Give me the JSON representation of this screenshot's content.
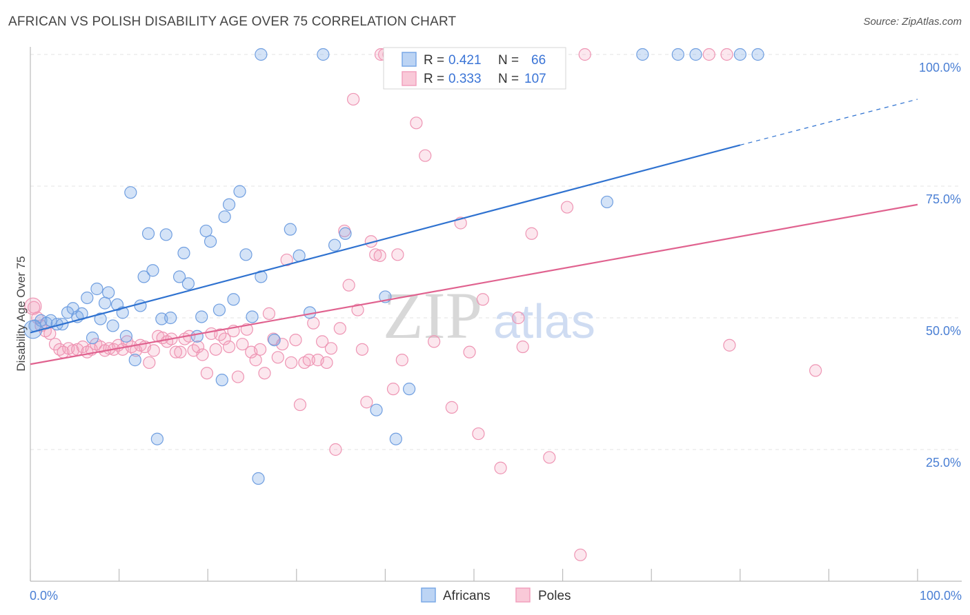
{
  "title": "AFRICAN VS POLISH DISABILITY AGE OVER 75 CORRELATION CHART",
  "source": "Source: ZipAtlas.com",
  "watermark": {
    "zip": "ZIP",
    "atlas": "atlas"
  },
  "colors": {
    "africans": "#7aa8e6",
    "africans_line": "#2f72d0",
    "poles": "#f2a0bd",
    "poles_line": "#e0628f",
    "tick_text": "#4a7fd4",
    "grid": "#e3e3e3"
  },
  "legend": {
    "rows": [
      {
        "r_label": "R =",
        "r_value": "0.421",
        "n_label": "N =",
        "n_value": "66"
      },
      {
        "r_label": "R =",
        "r_value": "0.333",
        "n_label": "N =",
        "n_value": "107"
      }
    ]
  },
  "chart_data": {
    "type": "scatter",
    "xlabel": "",
    "ylabel": "Disability Age Over 75",
    "xlim": [
      0,
      100
    ],
    "ylim": [
      0,
      100
    ],
    "x_tick_labels": [
      "0.0%",
      "100.0%"
    ],
    "y_tick_labels": [
      "25.0%",
      "50.0%",
      "75.0%",
      "100.0%"
    ],
    "y_ticks": [
      25,
      50,
      75,
      100
    ],
    "grid": true,
    "legend_position": "top-center",
    "series": [
      {
        "name": "Africans",
        "color": "#7aa8e6",
        "trend": {
          "x0": 0,
          "y0": 47.2,
          "x1": 80,
          "y1": 82.8,
          "dash_to_x": 100,
          "dash_to_y": 91.5
        },
        "points": [
          [
            0.5,
            48.5
          ],
          [
            1.2,
            49.5
          ],
          [
            1.8,
            49.0
          ],
          [
            2.3,
            49.5
          ],
          [
            3.0,
            48.8
          ],
          [
            3.6,
            48.8
          ],
          [
            4.2,
            51.0
          ],
          [
            4.8,
            51.8
          ],
          [
            5.3,
            50.2
          ],
          [
            5.8,
            50.8
          ],
          [
            6.4,
            53.8
          ],
          [
            7.0,
            46.2
          ],
          [
            7.5,
            55.5
          ],
          [
            7.9,
            49.8
          ],
          [
            8.4,
            52.8
          ],
          [
            8.8,
            54.8
          ],
          [
            9.3,
            48.5
          ],
          [
            9.8,
            52.5
          ],
          [
            10.4,
            51.0
          ],
          [
            10.8,
            46.5
          ],
          [
            11.3,
            73.8
          ],
          [
            11.8,
            42.0
          ],
          [
            12.4,
            52.3
          ],
          [
            12.8,
            57.8
          ],
          [
            13.3,
            66.0
          ],
          [
            13.8,
            59.0
          ],
          [
            14.3,
            27.0
          ],
          [
            14.8,
            49.8
          ],
          [
            15.3,
            65.8
          ],
          [
            15.8,
            50.0
          ],
          [
            16.8,
            57.8
          ],
          [
            17.3,
            62.3
          ],
          [
            17.8,
            56.5
          ],
          [
            18.8,
            46.5
          ],
          [
            19.3,
            50.2
          ],
          [
            19.8,
            66.5
          ],
          [
            20.3,
            64.5
          ],
          [
            21.3,
            51.5
          ],
          [
            21.6,
            38.2
          ],
          [
            21.9,
            69.2
          ],
          [
            22.4,
            71.5
          ],
          [
            22.9,
            53.5
          ],
          [
            23.6,
            74.0
          ],
          [
            24.3,
            62.0
          ],
          [
            25.0,
            50.2
          ],
          [
            26.0,
            57.8
          ],
          [
            26.0,
            100.0
          ],
          [
            27.5,
            45.8
          ],
          [
            29.3,
            66.8
          ],
          [
            30.3,
            61.8
          ],
          [
            31.5,
            51.0
          ],
          [
            33.0,
            100.0
          ],
          [
            34.3,
            63.8
          ],
          [
            35.5,
            66.0
          ],
          [
            39.0,
            32.5
          ],
          [
            40.0,
            54.0
          ],
          [
            41.2,
            27.0
          ],
          [
            42.7,
            36.5
          ],
          [
            57.5,
            100.0
          ],
          [
            65.0,
            72.0
          ],
          [
            69.0,
            100.0
          ],
          [
            73.0,
            100.0
          ],
          [
            75.0,
            100.0
          ],
          [
            80.0,
            100.0
          ],
          [
            82.0,
            100.0
          ],
          [
            25.7,
            19.5
          ]
        ]
      },
      {
        "name": "Poles",
        "color": "#f2a0bd",
        "trend": {
          "x0": 0,
          "y0": 41.2,
          "x1": 100,
          "y1": 71.5
        },
        "points": [
          [
            0.4,
            52.0
          ],
          [
            0.8,
            50.0
          ],
          [
            1.2,
            48.5
          ],
          [
            1.7,
            47.5
          ],
          [
            2.2,
            47.0
          ],
          [
            2.8,
            45.0
          ],
          [
            3.3,
            44.0
          ],
          [
            3.7,
            43.5
          ],
          [
            4.3,
            44.2
          ],
          [
            4.8,
            43.8
          ],
          [
            5.3,
            44.0
          ],
          [
            5.9,
            44.5
          ],
          [
            6.4,
            43.5
          ],
          [
            6.9,
            44.0
          ],
          [
            7.4,
            45.0
          ],
          [
            7.9,
            44.5
          ],
          [
            8.4,
            43.8
          ],
          [
            8.9,
            44.2
          ],
          [
            9.4,
            44.0
          ],
          [
            9.9,
            44.8
          ],
          [
            10.4,
            44.0
          ],
          [
            10.9,
            45.5
          ],
          [
            11.4,
            44.5
          ],
          [
            11.9,
            43.8
          ],
          [
            12.4,
            44.8
          ],
          [
            12.9,
            44.5
          ],
          [
            13.4,
            41.5
          ],
          [
            13.9,
            43.8
          ],
          [
            14.4,
            46.5
          ],
          [
            14.9,
            46.2
          ],
          [
            15.4,
            45.5
          ],
          [
            15.9,
            46.0
          ],
          [
            16.4,
            43.5
          ],
          [
            16.9,
            43.5
          ],
          [
            17.4,
            46.0
          ],
          [
            17.9,
            46.5
          ],
          [
            18.4,
            43.8
          ],
          [
            18.9,
            44.5
          ],
          [
            19.4,
            43.0
          ],
          [
            19.9,
            39.5
          ],
          [
            20.4,
            47.0
          ],
          [
            20.9,
            44.0
          ],
          [
            21.4,
            46.8
          ],
          [
            21.9,
            46.0
          ],
          [
            22.4,
            44.5
          ],
          [
            22.9,
            47.5
          ],
          [
            23.4,
            38.8
          ],
          [
            23.9,
            45.0
          ],
          [
            24.4,
            47.8
          ],
          [
            24.9,
            43.5
          ],
          [
            25.4,
            42.0
          ],
          [
            25.9,
            44.0
          ],
          [
            26.4,
            39.5
          ],
          [
            26.9,
            50.8
          ],
          [
            27.4,
            46.0
          ],
          [
            27.9,
            42.5
          ],
          [
            28.4,
            45.0
          ],
          [
            28.9,
            61.0
          ],
          [
            29.4,
            41.5
          ],
          [
            29.9,
            45.8
          ],
          [
            30.4,
            33.5
          ],
          [
            30.9,
            41.5
          ],
          [
            31.4,
            42.0
          ],
          [
            31.9,
            49.0
          ],
          [
            32.4,
            42.0
          ],
          [
            32.9,
            45.5
          ],
          [
            33.4,
            41.5
          ],
          [
            33.9,
            44.2
          ],
          [
            34.4,
            25.0
          ],
          [
            34.9,
            48.0
          ],
          [
            35.4,
            66.5
          ],
          [
            35.9,
            56.2
          ],
          [
            36.4,
            91.5
          ],
          [
            36.9,
            51.5
          ],
          [
            37.4,
            44.0
          ],
          [
            37.9,
            34.0
          ],
          [
            38.4,
            64.5
          ],
          [
            38.9,
            62.0
          ],
          [
            39.4,
            61.8
          ],
          [
            39.9,
            100.0
          ],
          [
            40.4,
            100.0
          ],
          [
            40.9,
            36.5
          ],
          [
            41.4,
            62.0
          ],
          [
            41.9,
            42.0
          ],
          [
            42.4,
            100.0
          ],
          [
            43.5,
            87.0
          ],
          [
            44.5,
            80.8
          ],
          [
            45.5,
            45.5
          ],
          [
            46.5,
            100.0
          ],
          [
            47.5,
            33.0
          ],
          [
            48.5,
            68.0
          ],
          [
            49.5,
            43.5
          ],
          [
            50.5,
            28.0
          ],
          [
            51.0,
            53.5
          ],
          [
            53.0,
            21.5
          ],
          [
            55.0,
            50.0
          ],
          [
            55.5,
            44.5
          ],
          [
            56.5,
            66.0
          ],
          [
            58.5,
            23.5
          ],
          [
            60.5,
            71.0
          ],
          [
            62.0,
            5.0
          ],
          [
            62.5,
            100.0
          ],
          [
            76.5,
            100.0
          ],
          [
            78.5,
            100.0
          ],
          [
            78.8,
            44.8
          ],
          [
            88.5,
            40.0
          ],
          [
            39.5,
            100.0
          ]
        ]
      }
    ]
  }
}
